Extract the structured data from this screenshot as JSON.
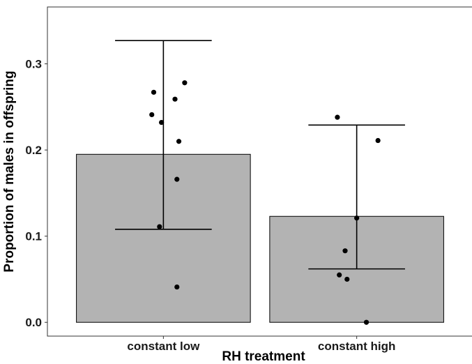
{
  "chart_data": {
    "type": "bar",
    "title": "",
    "xlabel": "RH treatment",
    "ylabel": "Proportion of males in offspring",
    "ylim": [
      -0.016,
      0.366
    ],
    "yticks": [
      0.0,
      0.1,
      0.2,
      0.3
    ],
    "ytick_labels": [
      "0.0",
      "0.1",
      "0.2",
      "0.3"
    ],
    "grid": false,
    "legend": "none",
    "categories": [
      "constant low",
      "constant high"
    ],
    "values": [
      0.195,
      0.123
    ],
    "error_bars": [
      {
        "lower": 0.108,
        "upper": 0.327
      },
      {
        "lower": 0.062,
        "upper": 0.229
      }
    ],
    "points": [
      {
        "category": "constant low",
        "jitter": -0.05,
        "y": 0.267
      },
      {
        "category": "constant low",
        "jitter": 0.11,
        "y": 0.278
      },
      {
        "category": "constant low",
        "jitter": 0.06,
        "y": 0.259
      },
      {
        "category": "constant low",
        "jitter": -0.06,
        "y": 0.241
      },
      {
        "category": "constant low",
        "jitter": -0.01,
        "y": 0.232
      },
      {
        "category": "constant low",
        "jitter": 0.08,
        "y": 0.21
      },
      {
        "category": "constant low",
        "jitter": 0.07,
        "y": 0.166
      },
      {
        "category": "constant low",
        "jitter": -0.02,
        "y": 0.111
      },
      {
        "category": "constant low",
        "jitter": 0.07,
        "y": 0.041
      },
      {
        "category": "constant high",
        "jitter": -0.1,
        "y": 0.238
      },
      {
        "category": "constant high",
        "jitter": 0.11,
        "y": 0.211
      },
      {
        "category": "constant high",
        "jitter": 0.0,
        "y": 0.121
      },
      {
        "category": "constant high",
        "jitter": -0.06,
        "y": 0.083
      },
      {
        "category": "constant high",
        "jitter": -0.09,
        "y": 0.055
      },
      {
        "category": "constant high",
        "jitter": -0.05,
        "y": 0.05
      },
      {
        "category": "constant high",
        "jitter": 0.05,
        "y": 0.0
      }
    ],
    "colors": {
      "bar_fill": "#b3b3b3",
      "bar_stroke": "#000000",
      "point": "#000000",
      "errorbar": "#000000",
      "panel_border": "#333333",
      "background": "#ffffff"
    }
  }
}
